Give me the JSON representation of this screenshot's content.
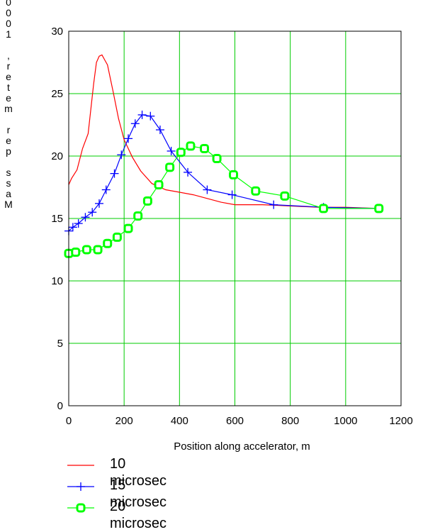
{
  "chart_data": {
    "type": "line",
    "xlabel": "Position along accelerator, m",
    "ylabel": "Mass per meter, 1000",
    "xlim": [
      0,
      1200
    ],
    "ylim": [
      0,
      30
    ],
    "xticks": [
      "0",
      "200",
      "400",
      "600",
      "800",
      "1000",
      "1200"
    ],
    "yticks": [
      "0",
      "5",
      "10",
      "15",
      "20",
      "25",
      "30"
    ],
    "grid": true,
    "legend_position": "bottom",
    "series": [
      {
        "name": "10 microsec",
        "color": "#ff0000",
        "marker": "none",
        "x": [
          0,
          10,
          30,
          50,
          70,
          90,
          100,
          110,
          120,
          130,
          140,
          160,
          180,
          200,
          230,
          260,
          300,
          350,
          400,
          450,
          500,
          550,
          600,
          700,
          800,
          900,
          1000,
          1120
        ],
        "y": [
          17.7,
          18.2,
          18.9,
          20.6,
          21.8,
          25.8,
          27.5,
          28.0,
          28.1,
          27.7,
          27.3,
          25.2,
          23.0,
          21.3,
          19.9,
          18.8,
          17.8,
          17.3,
          17.1,
          16.9,
          16.6,
          16.3,
          16.1,
          16.1,
          16.0,
          15.9,
          15.9,
          15.8
        ]
      },
      {
        "name": "15 microsec",
        "color": "#0000ff",
        "marker": "plus",
        "x": [
          0,
          15,
          35,
          60,
          85,
          110,
          135,
          165,
          190,
          215,
          240,
          265,
          295,
          330,
          370,
          430,
          500,
          590,
          740,
          920,
          1120
        ],
        "y": [
          14.0,
          14.3,
          14.6,
          15.1,
          15.5,
          16.2,
          17.3,
          18.6,
          20.1,
          21.4,
          22.6,
          23.3,
          23.2,
          22.1,
          20.4,
          18.7,
          17.3,
          16.9,
          16.1,
          15.9,
          15.8
        ]
      },
      {
        "name": "20 microsec",
        "color": "#00ff00",
        "marker": "square",
        "x": [
          0,
          25,
          65,
          105,
          140,
          175,
          215,
          250,
          285,
          325,
          365,
          405,
          440,
          490,
          535,
          595,
          675,
          780,
          920,
          1120
        ],
        "y": [
          12.2,
          12.3,
          12.5,
          12.5,
          13.0,
          13.5,
          14.2,
          15.2,
          16.4,
          17.7,
          19.1,
          20.3,
          20.8,
          20.6,
          19.8,
          18.5,
          17.2,
          16.8,
          15.8,
          15.8
        ]
      }
    ]
  }
}
